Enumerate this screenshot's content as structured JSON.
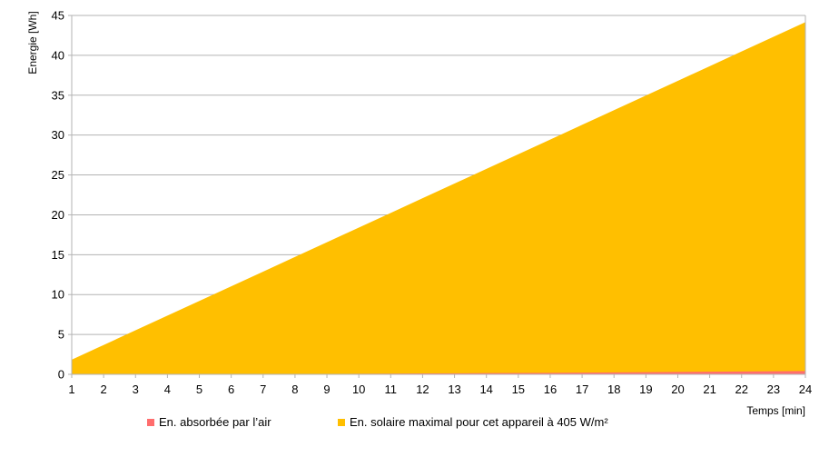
{
  "chart_data": {
    "type": "area",
    "title": "",
    "xlabel": "Temps [min]",
    "ylabel": "Energie [Wh]",
    "x": [
      1,
      2,
      3,
      4,
      5,
      6,
      7,
      8,
      9,
      10,
      11,
      12,
      13,
      14,
      15,
      16,
      17,
      18,
      19,
      20,
      21,
      22,
      23,
      24
    ],
    "ylim": [
      0,
      45
    ],
    "yticks": [
      0,
      5,
      10,
      15,
      20,
      25,
      30,
      35,
      40,
      45
    ],
    "grid": true,
    "legend_position": "bottom",
    "series": [
      {
        "name": "En. absorbée par l’air",
        "color": "#ff6d6d",
        "values": [
          0.0,
          0.0,
          0.0,
          0.0,
          0.0,
          0.0,
          0.02,
          0.03,
          0.05,
          0.07,
          0.09,
          0.11,
          0.13,
          0.15,
          0.17,
          0.19,
          0.21,
          0.24,
          0.27,
          0.3,
          0.33,
          0.36,
          0.39,
          0.42
        ]
      },
      {
        "name": "En. solaire maximal pour cet appareil à 405 W/m²",
        "color": "#ffbf00",
        "values": [
          1.84,
          3.68,
          5.52,
          7.36,
          9.2,
          11.04,
          12.88,
          14.72,
          16.56,
          18.4,
          20.24,
          22.08,
          23.92,
          25.76,
          27.6,
          29.44,
          31.28,
          33.12,
          34.96,
          36.8,
          38.64,
          40.48,
          42.32,
          44.16
        ]
      }
    ]
  }
}
